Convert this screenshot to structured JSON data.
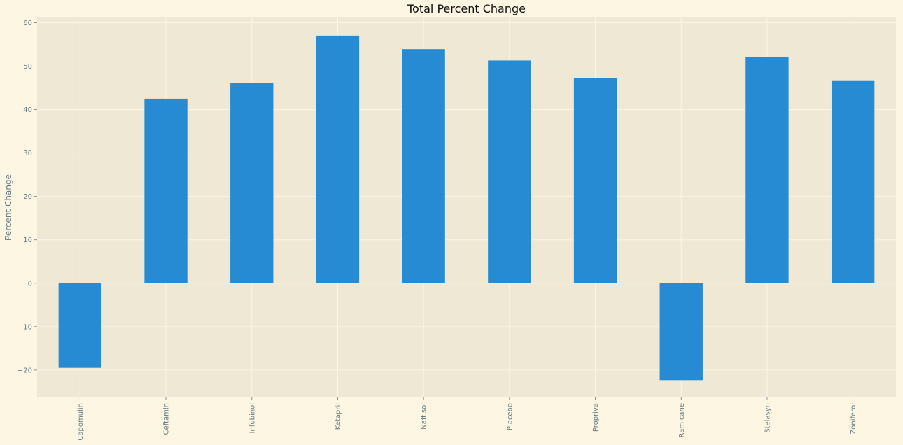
{
  "chart_data": {
    "type": "bar",
    "title": "Total Percent Change",
    "xlabel": "",
    "ylabel": "Percent Change",
    "categories": [
      "Capomulin",
      "Ceftamin",
      "Infubinol",
      "Ketapril",
      "Naftisol",
      "Placebo",
      "Propriva",
      "Ramicane",
      "Stelasyn",
      "Zoniferol"
    ],
    "values": [
      -19.48,
      42.52,
      46.12,
      57.03,
      53.92,
      51.3,
      47.24,
      -22.32,
      52.09,
      46.58
    ],
    "ylim": [
      -26.3,
      61.2
    ],
    "yticks": [
      -20,
      -10,
      0,
      10,
      20,
      30,
      40,
      50,
      60
    ],
    "grid": true,
    "legend": "none",
    "colors": {
      "bar": "#268bd2",
      "plot_background": "#eee8d5",
      "figure_background": "#fdf6e3",
      "grid": "#fdf6e3",
      "tick_text": "#657b83",
      "title_text": "#111111"
    }
  }
}
